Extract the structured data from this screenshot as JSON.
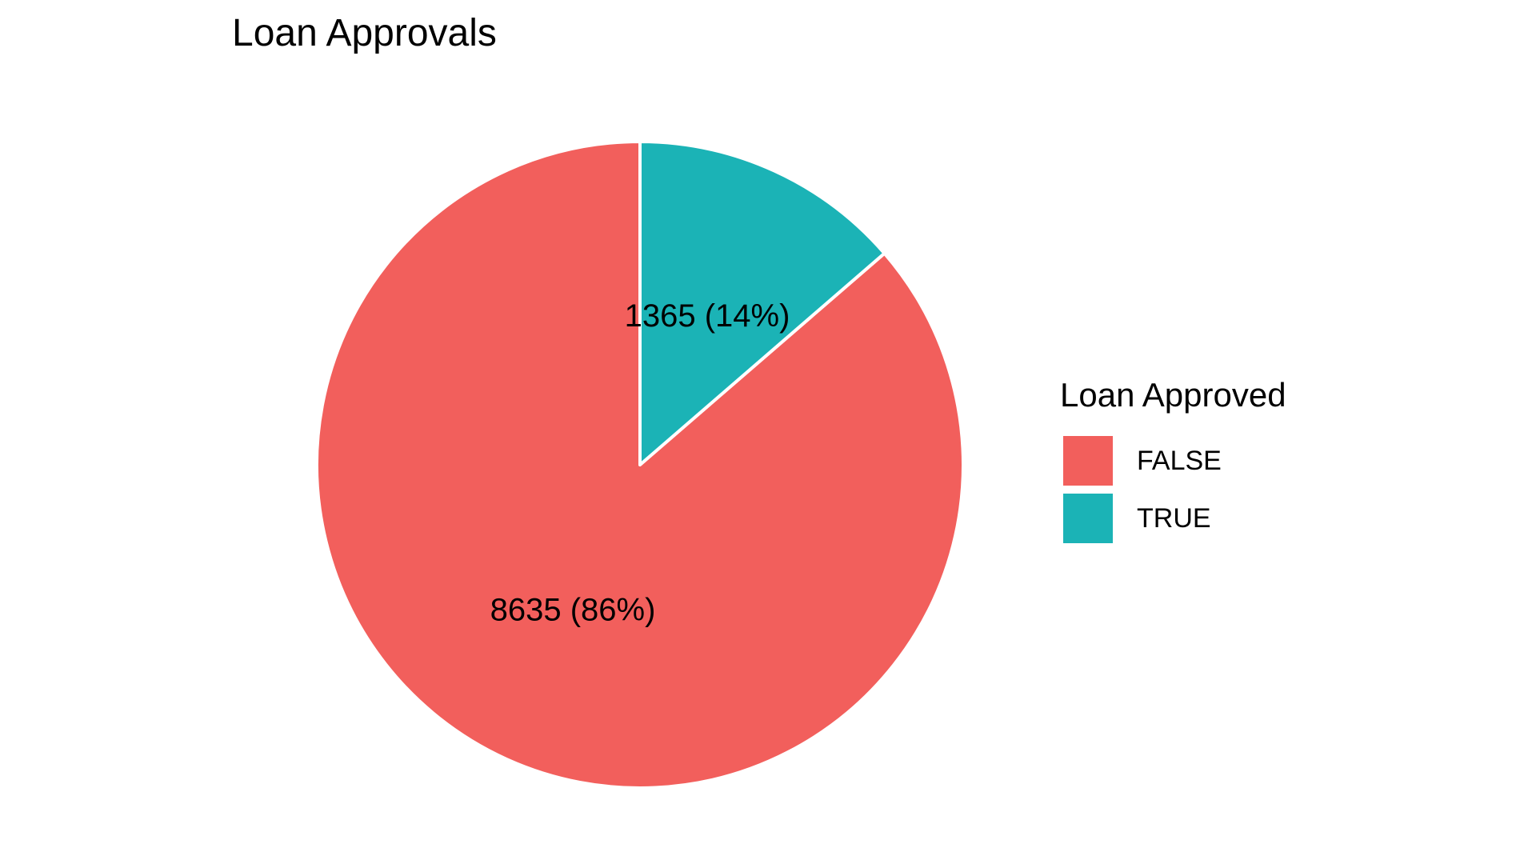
{
  "chart_data": {
    "type": "pie",
    "title": "Loan Approvals",
    "legend": {
      "title": "Loan Approved",
      "position": "right"
    },
    "slices": [
      {
        "category": "FALSE",
        "value": 8635,
        "percent": 86,
        "label": "8635 (86%)",
        "color": "#F25F5C"
      },
      {
        "category": "TRUE",
        "value": 1365,
        "percent": 14,
        "label": "1365 (14%)",
        "color": "#1BB3B6"
      }
    ],
    "start_angle": "12 o'clock",
    "direction": "counterclockwise for FALSE, TRUE clockwise from top",
    "slice_border_color": "#FFFFFF"
  }
}
